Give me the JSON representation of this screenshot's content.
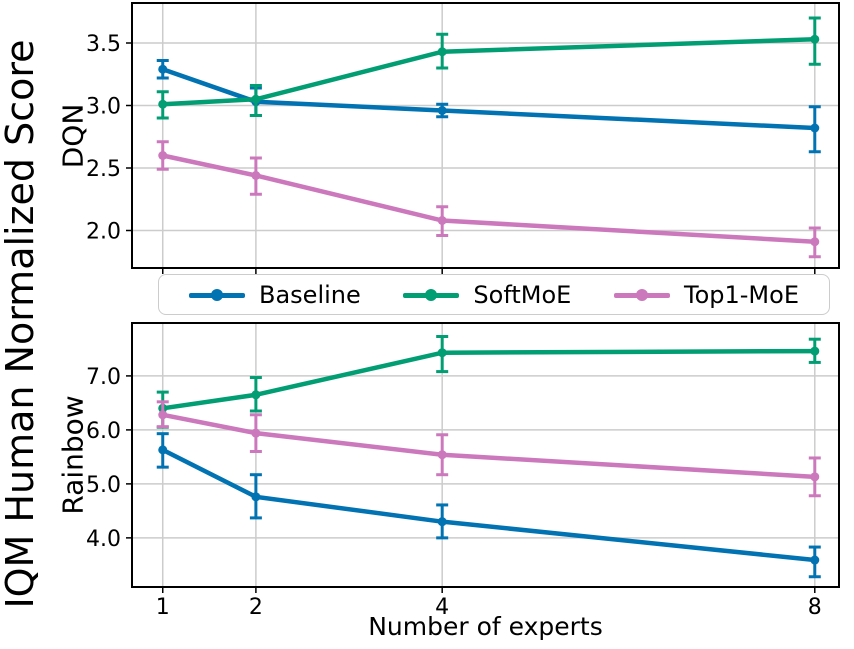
{
  "figure": {
    "ylabel_main": "IQM Human Normalized Score",
    "xlabel": "Number of experts",
    "background_color": "#ffffff",
    "grid_color": "#cccccc",
    "axis_color": "#000000"
  },
  "legend": {
    "position": "between-subplots",
    "items": [
      {
        "label": "Baseline",
        "color": "#0173B2",
        "marker": "line-with-dot"
      },
      {
        "label": "SoftMoE",
        "color": "#029E73",
        "marker": "line-with-dot"
      },
      {
        "label": "Top1-MoE",
        "color": "#CC78BC",
        "marker": "line-with-dot"
      }
    ]
  },
  "chart_data": [
    {
      "type": "line",
      "title": "DQN",
      "ylabel": "DQN",
      "x": [
        1,
        2,
        4,
        8
      ],
      "xticks": [
        1,
        2,
        4,
        8
      ],
      "yticks": [
        2.0,
        2.5,
        3.0,
        3.5
      ],
      "xlim": [
        0.67,
        8.26
      ],
      "ylim": [
        1.7,
        3.82
      ],
      "grid": true,
      "error_bars": true,
      "show_x_tick_labels": false,
      "series": [
        {
          "name": "Baseline",
          "color": "#0173B2",
          "values": [
            3.29,
            3.03,
            2.96,
            2.82
          ],
          "err_low": [
            3.22,
            2.92,
            2.91,
            2.63
          ],
          "err_high": [
            3.36,
            3.14,
            3.01,
            2.99
          ]
        },
        {
          "name": "SoftMoE",
          "color": "#029E73",
          "values": [
            3.01,
            3.05,
            3.43,
            3.53
          ],
          "err_low": [
            2.9,
            2.92,
            3.3,
            3.33
          ],
          "err_high": [
            3.11,
            3.16,
            3.57,
            3.7
          ]
        },
        {
          "name": "Top1-MoE",
          "color": "#CC78BC",
          "values": [
            2.6,
            2.44,
            2.08,
            1.91
          ],
          "err_low": [
            2.49,
            2.29,
            1.96,
            1.79
          ],
          "err_high": [
            2.71,
            2.58,
            2.19,
            2.02
          ]
        }
      ]
    },
    {
      "type": "line",
      "title": "Rainbow",
      "ylabel": "Rainbow",
      "x": [
        1,
        2,
        4,
        8
      ],
      "xticks": [
        1,
        2,
        4,
        8
      ],
      "yticks": [
        4.0,
        5.0,
        6.0,
        7.0
      ],
      "xlim": [
        0.67,
        8.26
      ],
      "ylim": [
        3.09,
        7.98
      ],
      "grid": true,
      "error_bars": true,
      "show_x_tick_labels": true,
      "xlabel": "Number of experts",
      "series": [
        {
          "name": "Baseline",
          "color": "#0173B2",
          "values": [
            5.63,
            4.76,
            4.3,
            3.59
          ],
          "err_low": [
            5.31,
            4.37,
            4.0,
            3.28
          ],
          "err_high": [
            5.93,
            5.17,
            4.61,
            3.83
          ]
        },
        {
          "name": "SoftMoE",
          "color": "#029E73",
          "values": [
            6.4,
            6.65,
            7.43,
            7.46
          ],
          "err_low": [
            6.05,
            6.35,
            7.08,
            7.25
          ],
          "err_high": [
            6.7,
            6.97,
            7.73,
            7.68
          ]
        },
        {
          "name": "Top1-MoE",
          "color": "#CC78BC",
          "values": [
            6.28,
            5.94,
            5.54,
            5.13
          ],
          "err_low": [
            6.06,
            5.6,
            5.17,
            4.78
          ],
          "err_high": [
            6.52,
            6.28,
            5.91,
            5.48
          ]
        }
      ]
    }
  ]
}
